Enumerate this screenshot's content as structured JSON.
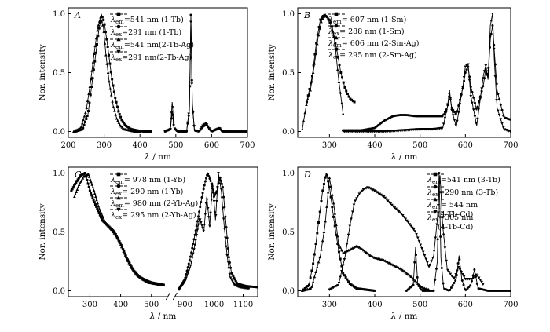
{
  "figure": {
    "panels": [
      {
        "id": "A",
        "letter": "A",
        "ylabel": "Nor. intensity",
        "xlabel": "λ / nm",
        "xlim": [
          200,
          700
        ],
        "ylim": [
          -0.05,
          1.05
        ],
        "xticks": [
          200,
          300,
          400,
          500,
          600,
          700
        ],
        "xtick_labels": [
          "200",
          "300",
          "400",
          "500",
          "600",
          "700"
        ],
        "yticks": [
          0.0,
          0.5,
          1.0
        ],
        "ytick_labels": [
          "0.0",
          "0.5",
          "1.0"
        ],
        "legend": [
          {
            "sym": "λ",
            "sub": "em",
            "text": "=541 nm (1-Tb)",
            "marker": "square"
          },
          {
            "sym": "λ",
            "sub": "ex",
            "text": "=291 nm (1-Tb)",
            "marker": "circle"
          },
          {
            "sym": "λ",
            "sub": "em",
            "text": "=541 nm(2-Tb-Ag)",
            "marker": "triangle-up"
          },
          {
            "sym": "λ",
            "sub": "ex",
            "text": "=291 nm(2-Tb-Ag)",
            "marker": "triangle-down"
          }
        ]
      },
      {
        "id": "B",
        "letter": "B",
        "ylabel": "Nor. intensity",
        "xlabel": "λ / nm",
        "xlim": [
          230,
          700
        ],
        "ylim": [
          -0.05,
          1.05
        ],
        "xticks": [
          300,
          400,
          500,
          600,
          700
        ],
        "xtick_labels": [
          "300",
          "400",
          "500",
          "600",
          "700"
        ],
        "yticks": [
          0.0,
          0.5,
          1.0
        ],
        "ytick_labels": [
          "0.0",
          "0.5",
          "1.0"
        ],
        "legend": [
          {
            "sym": "λ",
            "sub": "em",
            "text": "= 607 nm (1-Sm)",
            "marker": "square"
          },
          {
            "sym": "λ",
            "sub": "ex",
            "text": "= 288 nm (1-Sm)",
            "marker": "circle"
          },
          {
            "sym": "λ",
            "sub": "em",
            "text": "= 606 nm (2-Sm-Ag)",
            "marker": "triangle-up"
          },
          {
            "sym": "λ",
            "sub": "ex",
            "text": "= 295 nm (2-Sm-Ag)",
            "marker": "triangle-down"
          }
        ]
      },
      {
        "id": "C",
        "letter": "C",
        "ylabel": "Nor. intensity",
        "xlabel": "λ / nm",
        "xlim": [
          230,
          1150
        ],
        "ylim": [
          -0.05,
          1.05
        ],
        "xticks": [
          300,
          400,
          500,
          900,
          1000,
          1100
        ],
        "xtick_labels": [
          "300",
          "400",
          "500",
          "900",
          "1000",
          "1100"
        ],
        "yticks": [
          0.0,
          0.5,
          1.0
        ],
        "ytick_labels": [
          "0.0",
          "0.5",
          "1.0"
        ],
        "legend": [
          {
            "sym": "λ",
            "sub": "em",
            "text": "= 978 nm (1-Yb)",
            "marker": "square"
          },
          {
            "sym": "λ",
            "sub": "ex",
            "text": "= 290 nm (1-Yb)",
            "marker": "circle"
          },
          {
            "sym": "λ",
            "sub": "em",
            "text": "= 980 nm (2-Yb-Ag)",
            "marker": "triangle-up"
          },
          {
            "sym": "λ",
            "sub": "ex",
            "text": "= 295 nm (2-Yb-Ag)",
            "marker": "triangle-down"
          }
        ]
      },
      {
        "id": "D",
        "letter": "D",
        "ylabel": "Nor. intensity",
        "xlabel": "λ / nm",
        "xlim": [
          230,
          700
        ],
        "ylim": [
          -0.05,
          1.05
        ],
        "xticks": [
          300,
          400,
          500,
          600,
          700
        ],
        "xtick_labels": [
          "300",
          "400",
          "500",
          "600",
          "700"
        ],
        "yticks": [
          0.0,
          0.5,
          1.0
        ],
        "ytick_labels": [
          "0.0",
          "0.5",
          "1.0"
        ],
        "legend": [
          {
            "sym": "λ",
            "sub": "em",
            "text": "=541 nm (3-Tb)",
            "marker": "square"
          },
          {
            "sym": "λ",
            "sub": "ex",
            "text": "=290 nm (3-Tb)",
            "marker": "circle"
          },
          {
            "sym": "λ",
            "sub": "em",
            "text": "= 544 nm",
            "text2": "(4-Tb-Cd)",
            "marker": "triangle-up"
          },
          {
            "sym": "λ",
            "sub": "ex",
            "text": "=305 nm",
            "text2": "(4-Tb-Cd)",
            "marker": "triangle-down"
          }
        ]
      }
    ]
  },
  "chart_data": [
    {
      "type": "line",
      "panel": "A",
      "xlabel": "λ / nm",
      "ylabel": "Nor. intensity",
      "xlim": [
        200,
        700
      ],
      "ylim": [
        -0.05,
        1.05
      ],
      "series": [
        {
          "name": "λem=541 nm (1-Tb)",
          "marker": "square",
          "x": [
            220,
            240,
            255,
            265,
            275,
            285,
            293,
            300,
            310,
            320,
            330,
            340,
            350,
            360,
            375,
            390,
            410,
            430
          ],
          "y": [
            0.0,
            0.02,
            0.15,
            0.38,
            0.62,
            0.86,
            0.99,
            0.93,
            0.72,
            0.48,
            0.3,
            0.17,
            0.09,
            0.05,
            0.02,
            0.01,
            0.0,
            0.0
          ]
        },
        {
          "name": "λex=291 nm (1-Tb)",
          "marker": "circle",
          "x": [
            470,
            485,
            490,
            495,
            505,
            530,
            538,
            542,
            546,
            552,
            565,
            575,
            585,
            592,
            600,
            615,
            622,
            630,
            650,
            675,
            700
          ],
          "y": [
            0.0,
            0.02,
            0.17,
            0.03,
            0.0,
            0.0,
            0.18,
            0.99,
            0.25,
            0.01,
            0.0,
            0.04,
            0.06,
            0.03,
            0.0,
            0.02,
            0.03,
            0.0,
            0.0,
            0.0,
            0.0
          ]
        },
        {
          "name": "λem=541 nm(2-Tb-Ag)",
          "marker": "triangle-up",
          "x": [
            215,
            235,
            250,
            262,
            272,
            282,
            290,
            298,
            305,
            315,
            325,
            335,
            345,
            355,
            370,
            385,
            400
          ],
          "y": [
            0.0,
            0.03,
            0.18,
            0.42,
            0.66,
            0.88,
            0.97,
            0.88,
            0.65,
            0.4,
            0.22,
            0.11,
            0.05,
            0.02,
            0.01,
            0.0,
            0.0
          ]
        },
        {
          "name": "λex=291 nm(2-Tb-Ag)",
          "marker": "triangle-down",
          "x": [
            470,
            485,
            490,
            495,
            505,
            530,
            538,
            542,
            546,
            552,
            565,
            575,
            585,
            592,
            600,
            615,
            622,
            630
          ],
          "y": [
            0.0,
            0.02,
            0.25,
            0.03,
            0.0,
            0.0,
            0.2,
            0.93,
            0.23,
            0.01,
            0.0,
            0.05,
            0.07,
            0.03,
            0.0,
            0.02,
            0.03,
            0.0
          ]
        }
      ]
    },
    {
      "type": "line",
      "panel": "B",
      "xlabel": "λ / nm",
      "ylabel": "Nor. intensity",
      "xlim": [
        230,
        700
      ],
      "ylim": [
        -0.05,
        1.05
      ],
      "series": [
        {
          "name": "λem = 607 nm (1-Sm)",
          "marker": "square",
          "x": [
            250,
            262,
            272,
            280,
            288,
            296,
            305,
            315,
            325,
            335,
            345,
            355
          ],
          "y": [
            0.25,
            0.47,
            0.78,
            0.95,
            0.99,
            0.97,
            0.88,
            0.72,
            0.5,
            0.36,
            0.28,
            0.25
          ]
        },
        {
          "name": "λex = 288 nm (1-Sm)",
          "marker": "circle",
          "x": [
            330,
            370,
            400,
            420,
            440,
            455,
            470,
            490,
            510,
            530,
            550,
            560,
            565,
            570,
            580,
            595,
            600,
            606,
            612,
            625,
            640,
            645,
            650,
            655,
            660,
            670,
            685,
            700
          ],
          "y": [
            0.01,
            0.01,
            0.03,
            0.09,
            0.13,
            0.14,
            0.14,
            0.13,
            0.13,
            0.13,
            0.13,
            0.2,
            0.32,
            0.2,
            0.14,
            0.38,
            0.5,
            0.55,
            0.38,
            0.18,
            0.4,
            0.53,
            0.45,
            0.78,
            0.9,
            0.35,
            0.12,
            0.1
          ]
        },
        {
          "name": "λem = 606 nm (2-Sm-Ag)",
          "marker": "triangle-up",
          "x": [
            240,
            250,
            258,
            266,
            275,
            283,
            291,
            298,
            305,
            312,
            320,
            330
          ],
          "y": [
            0.02,
            0.25,
            0.35,
            0.55,
            0.8,
            0.95,
            0.99,
            0.96,
            0.92,
            0.75,
            0.45,
            0.15
          ]
        },
        {
          "name": "λex = 295 nm (2-Sm-Ag)",
          "marker": "triangle-down",
          "x": [
            330,
            380,
            420,
            460,
            500,
            530,
            550,
            560,
            565,
            570,
            580,
            595,
            600,
            606,
            612,
            625,
            640,
            645,
            650,
            655,
            660,
            664,
            670,
            685,
            700
          ],
          "y": [
            0.0,
            0.0,
            0.0,
            0.01,
            0.02,
            0.02,
            0.03,
            0.2,
            0.35,
            0.18,
            0.04,
            0.4,
            0.55,
            0.57,
            0.3,
            0.05,
            0.48,
            0.56,
            0.44,
            0.9,
            1.0,
            0.6,
            0.2,
            0.02,
            0.0
          ]
        }
      ]
    },
    {
      "type": "line",
      "panel": "C",
      "xlabel": "λ / nm",
      "ylabel": "Nor. intensity",
      "xlim": [
        230,
        1150
      ],
      "ylim": [
        -0.05,
        1.05
      ],
      "axis_break": [
        550,
        870
      ],
      "series": [
        {
          "name": "λem = 978 nm (1-Yb)",
          "marker": "square",
          "x": [
            240,
            255,
            270,
            285,
            300,
            320,
            340,
            360,
            380,
            400,
            420,
            440,
            460,
            480,
            500,
            520,
            540
          ],
          "y": [
            0.85,
            0.92,
            0.98,
            1.0,
            0.85,
            0.72,
            0.6,
            0.55,
            0.5,
            0.4,
            0.28,
            0.18,
            0.12,
            0.09,
            0.07,
            0.06,
            0.05
          ]
        },
        {
          "name": "λex = 290 nm (1-Yb)",
          "marker": "circle",
          "x": [
            880,
            900,
            920,
            940,
            960,
            970,
            978,
            990,
            1000,
            1010,
            1020,
            1030,
            1040,
            1050,
            1060,
            1080,
            1110,
            1150
          ],
          "y": [
            0.02,
            0.1,
            0.3,
            0.55,
            0.82,
            0.93,
            1.0,
            0.92,
            0.8,
            0.85,
            0.97,
            0.88,
            0.6,
            0.3,
            0.15,
            0.06,
            0.04,
            0.03
          ]
        },
        {
          "name": "λem = 980 nm (2-Yb-Ag)",
          "marker": "triangle-up",
          "x": [
            250,
            265,
            280,
            295,
            310,
            330,
            350,
            370,
            390,
            410,
            430,
            450,
            470,
            490,
            510,
            530
          ],
          "y": [
            0.8,
            0.9,
            0.97,
            0.99,
            0.88,
            0.7,
            0.58,
            0.52,
            0.45,
            0.33,
            0.22,
            0.14,
            0.1,
            0.07,
            0.06,
            0.05
          ]
        },
        {
          "name": "λex = 295 nm (2-Yb-Ag)",
          "marker": "triangle-down",
          "x": [
            880,
            900,
            920,
            935,
            950,
            965,
            975,
            985,
            995,
            1005,
            1015,
            1025,
            1035,
            1045,
            1055,
            1070,
            1090,
            1120
          ],
          "y": [
            0.01,
            0.08,
            0.22,
            0.4,
            0.62,
            0.5,
            0.8,
            0.55,
            0.92,
            0.6,
            1.0,
            0.85,
            0.55,
            0.3,
            0.12,
            0.05,
            0.03,
            0.02
          ]
        }
      ]
    },
    {
      "type": "line",
      "panel": "D",
      "xlabel": "λ / nm",
      "ylabel": "Nor. intensity",
      "xlim": [
        230,
        700
      ],
      "ylim": [
        -0.05,
        1.05
      ],
      "series": [
        {
          "name": "λem=541 nm (3-Tb)",
          "marker": "square",
          "x": [
            240,
            255,
            265,
            275,
            285,
            293,
            300,
            310,
            320,
            330,
            345,
            360,
            380,
            400
          ],
          "y": [
            0.0,
            0.05,
            0.25,
            0.55,
            0.85,
            1.0,
            0.88,
            0.6,
            0.35,
            0.15,
            0.06,
            0.02,
            0.01,
            0.0
          ]
        },
        {
          "name": "λex=290 nm (3-Tb)",
          "marker": "circle",
          "x": [
            470,
            485,
            490,
            495,
            505,
            530,
            538,
            542,
            546,
            552,
            565,
            580,
            586,
            592,
            600,
            612,
            620,
            628,
            650,
            675,
            700
          ],
          "y": [
            0.0,
            0.05,
            0.37,
            0.05,
            0.0,
            0.0,
            0.25,
            1.0,
            0.28,
            0.02,
            0.0,
            0.1,
            0.3,
            0.1,
            0.0,
            0.05,
            0.18,
            0.02,
            0.0,
            0.0,
            0.0
          ]
        },
        {
          "name": "λem = 544 nm (4-Tb-Cd)",
          "marker": "triangle-up",
          "x": [
            240,
            260,
            280,
            290,
            300,
            310,
            320,
            330,
            340,
            350,
            360,
            370,
            380,
            390,
            400,
            420,
            440,
            460,
            480,
            490,
            500,
            510,
            520
          ],
          "y": [
            0.0,
            0.02,
            0.3,
            0.55,
            0.96,
            0.72,
            0.4,
            0.32,
            0.34,
            0.36,
            0.38,
            0.36,
            0.33,
            0.3,
            0.28,
            0.26,
            0.22,
            0.18,
            0.12,
            0.08,
            0.04,
            0.02,
            0.01
          ]
        },
        {
          "name": "λex =305 nm (4-Tb-Cd)",
          "marker": "triangle-down",
          "x": [
            300,
            320,
            335,
            345,
            355,
            365,
            375,
            385,
            400,
            420,
            440,
            460,
            480,
            490,
            500,
            520,
            530,
            538,
            544,
            550,
            560,
            575,
            585,
            600,
            615,
            625,
            640
          ],
          "y": [
            0.01,
            0.05,
            0.3,
            0.55,
            0.75,
            0.82,
            0.86,
            0.88,
            0.85,
            0.8,
            0.72,
            0.65,
            0.55,
            0.5,
            0.4,
            0.2,
            0.3,
            0.6,
            0.98,
            0.55,
            0.18,
            0.1,
            0.2,
            0.1,
            0.1,
            0.14,
            0.05
          ]
        }
      ]
    }
  ]
}
